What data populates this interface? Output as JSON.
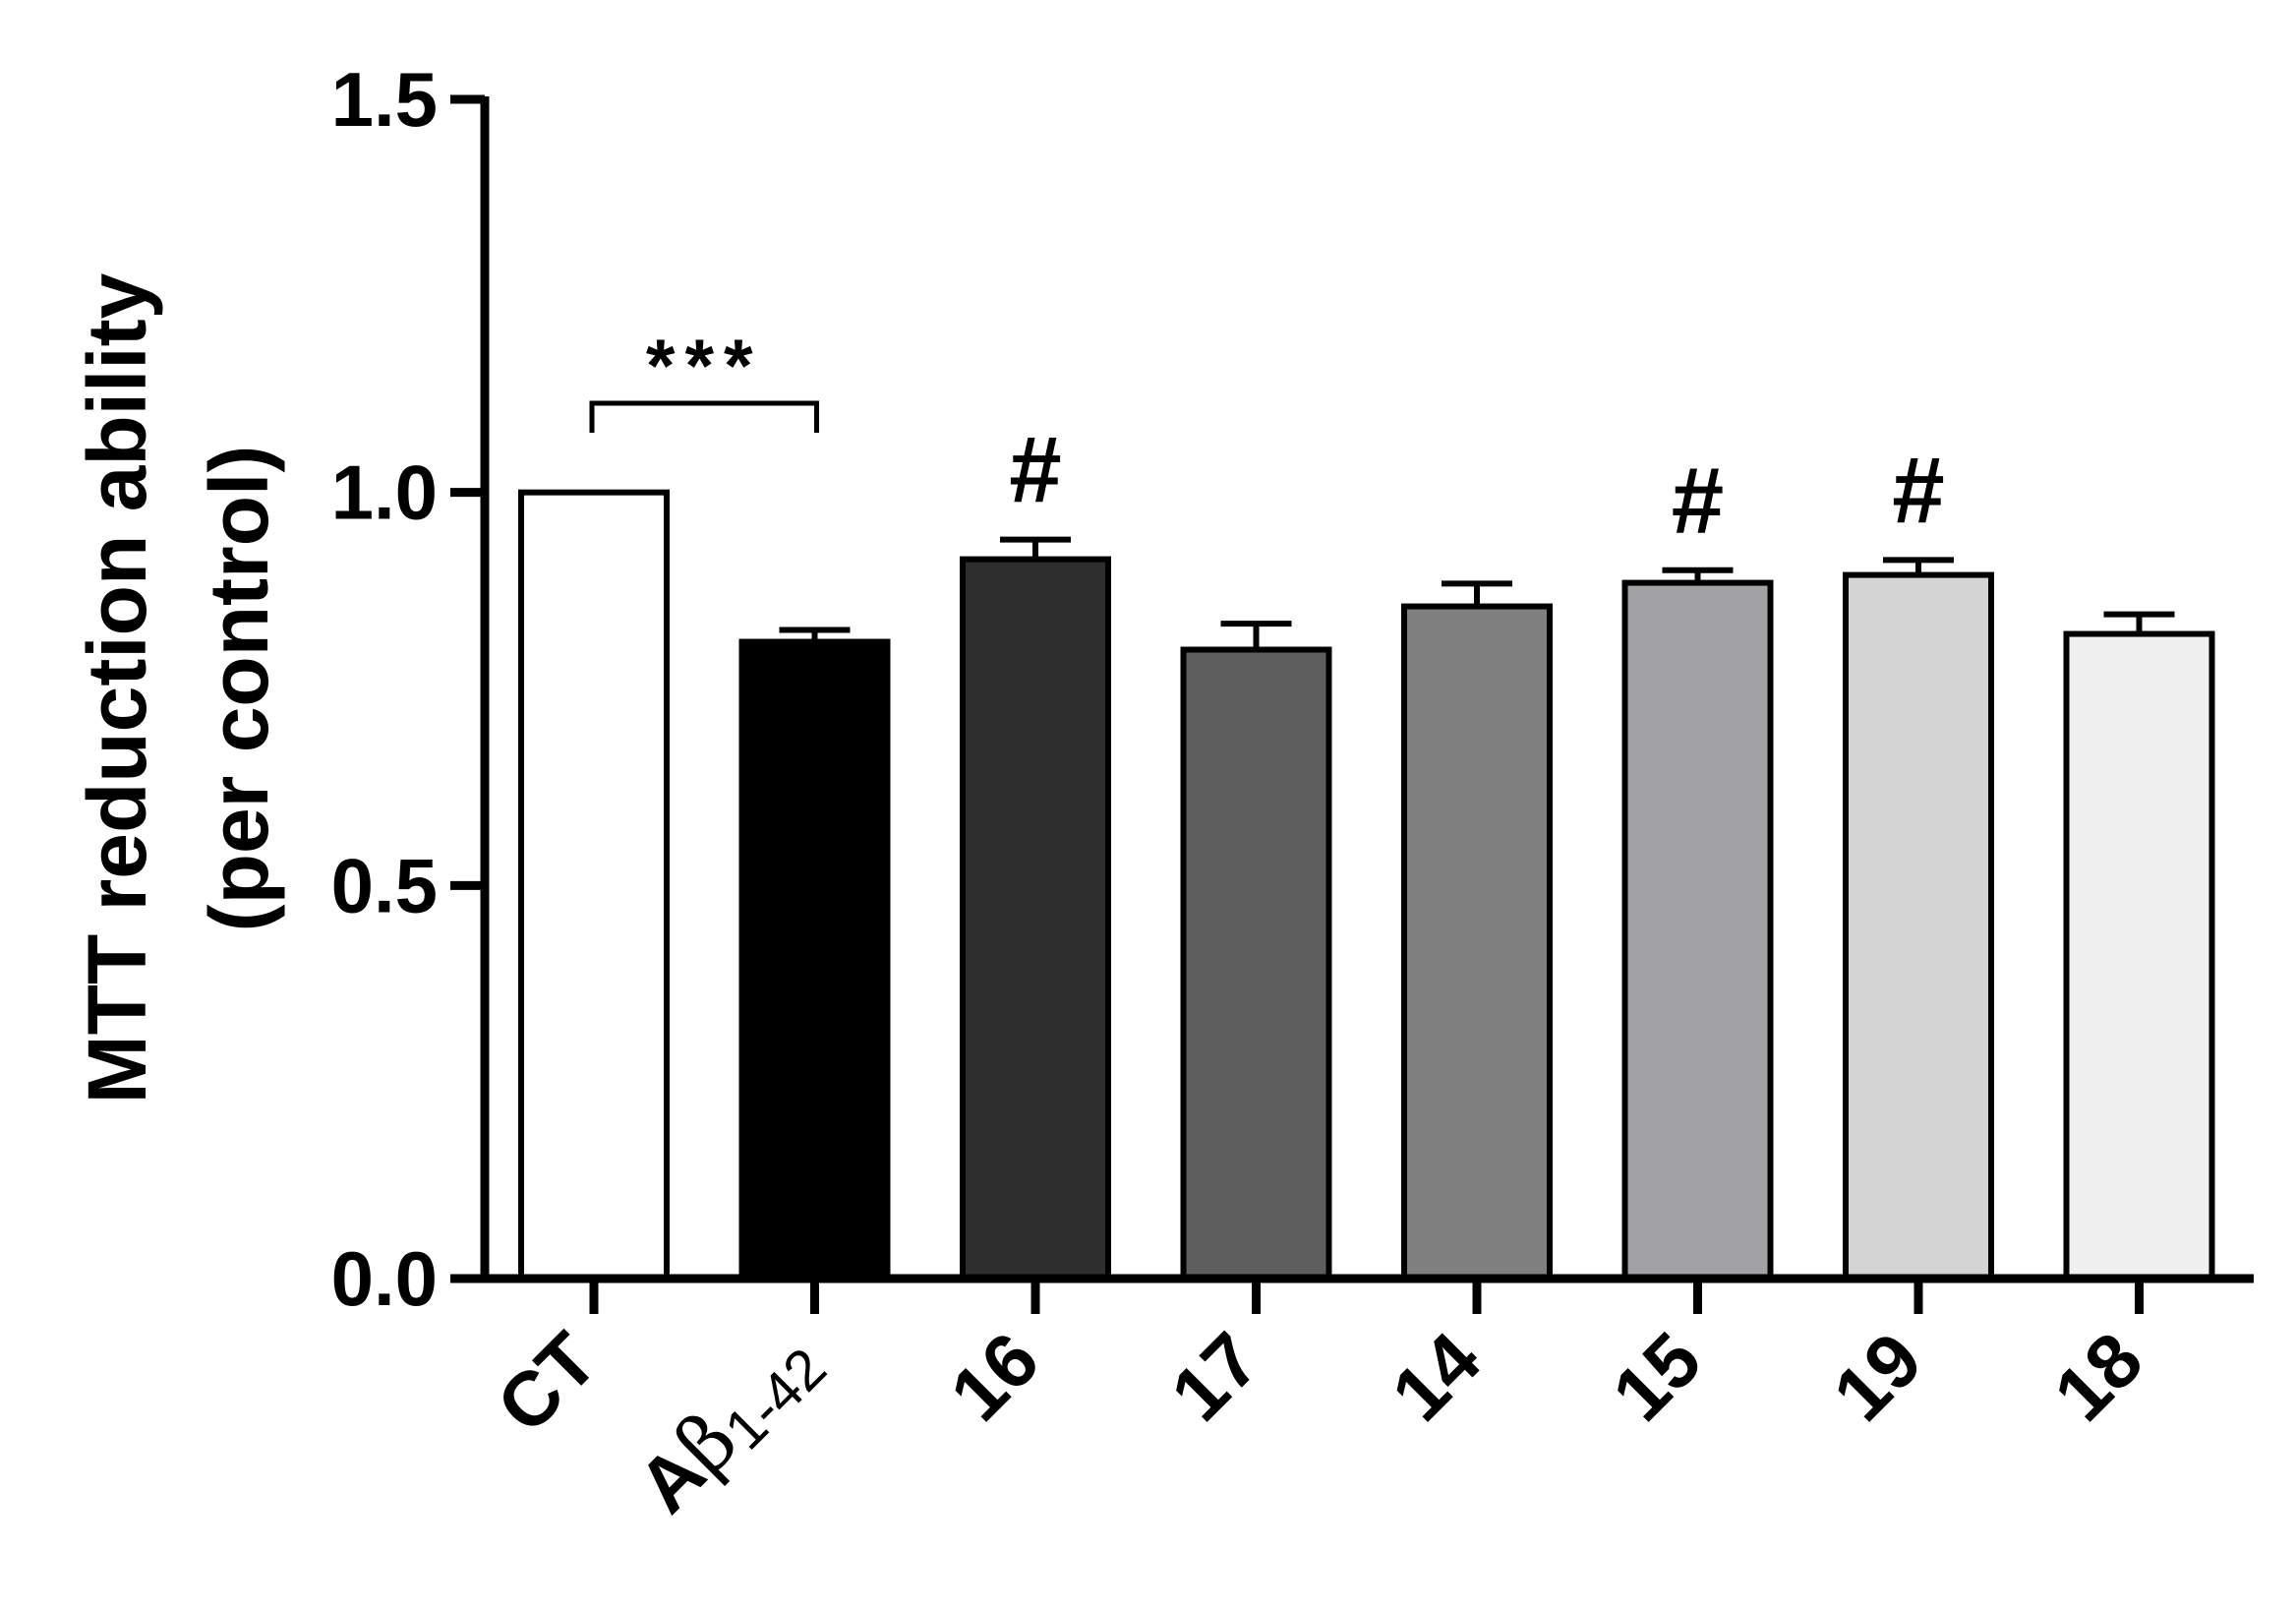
{
  "chart_data": {
    "type": "bar",
    "ylabel_line1": "MTT reduction ability",
    "ylabel_line2": "(per control)",
    "ylim": [
      0,
      1.5
    ],
    "yticks": [
      "0.0",
      "0.5",
      "1.0",
      "1.5"
    ],
    "ytick_values": [
      0,
      0.5,
      1.0,
      1.5
    ],
    "categories": [
      {
        "label": "CT",
        "value": 1.0,
        "error": 0,
        "color": "#ffffff",
        "annotation": ""
      },
      {
        "label": "Aβ1-42",
        "label_main": "A",
        "label_greek": "β",
        "label_sub": "1-42",
        "value": 0.81,
        "error": 0.015,
        "color": "#000000",
        "annotation": ""
      },
      {
        "label": "16",
        "value": 0.915,
        "error": 0.025,
        "color": "#2e2e2e",
        "annotation": "#"
      },
      {
        "label": "17",
        "value": 0.8,
        "error": 0.033,
        "color": "#5e5e5e",
        "annotation": ""
      },
      {
        "label": "14",
        "value": 0.855,
        "error": 0.029,
        "color": "#7f7f7f",
        "annotation": ""
      },
      {
        "label": "15",
        "value": 0.885,
        "error": 0.016,
        "color": "#a2a2a4",
        "annotation": "#"
      },
      {
        "label": "19",
        "value": 0.895,
        "error": 0.019,
        "color": "#d4d4d4",
        "annotation": "#"
      },
      {
        "label": "18",
        "value": 0.82,
        "error": 0.025,
        "color": "#f0f0f0",
        "annotation": ""
      }
    ],
    "significance": {
      "from": 0,
      "to": 1,
      "label": "***"
    },
    "grid": false,
    "legend": "none"
  }
}
